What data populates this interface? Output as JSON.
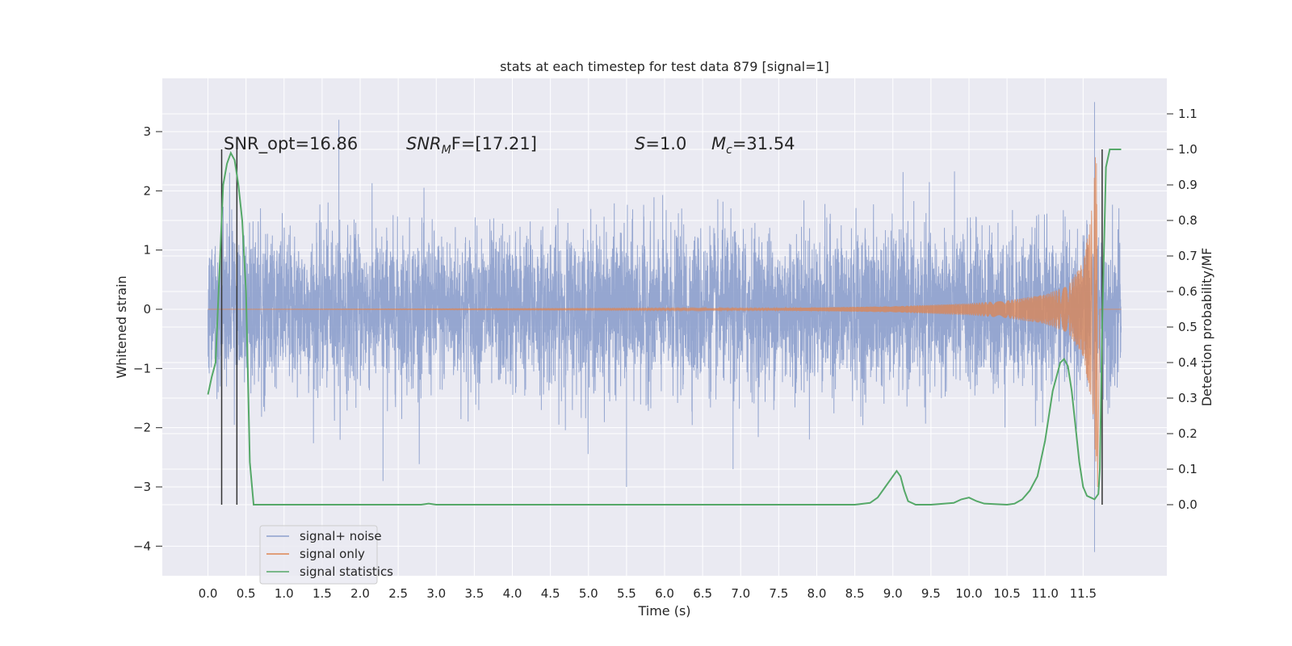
{
  "chart_data": {
    "type": "line",
    "title": "stats at each timestep for test data 879 [signal=1]",
    "xlabel": "Time (s)",
    "ylabel": "Whitened strain",
    "y2label": "Detection probability/MF",
    "xlim": [
      -0.6,
      12.6
    ],
    "ylim": [
      -4.5,
      3.9
    ],
    "y2lim": [
      -0.2,
      1.2
    ],
    "grid": true,
    "background": "#eaeaf2",
    "legend_position": "lower-left",
    "xticks": [
      "0.0",
      "0.5",
      "1.0",
      "1.5",
      "2.0",
      "2.5",
      "3.0",
      "3.5",
      "4.0",
      "4.5",
      "5.0",
      "5.5",
      "6.0",
      "6.5",
      "7.0",
      "7.5",
      "8.0",
      "8.5",
      "9.0",
      "9.5",
      "10.0",
      "10.5",
      "11.0",
      "11.5"
    ],
    "yticks": [
      "3",
      "2",
      "1",
      "0",
      "−1",
      "−2",
      "−3",
      "−4"
    ],
    "y2ticks": [
      "1.1",
      "1.0",
      "0.9",
      "0.8",
      "0.7",
      "0.6",
      "0.5",
      "0.4",
      "0.3",
      "0.2",
      "0.1",
      "0.0"
    ],
    "annotations": {
      "snr_opt": "SNR_opt=16.86",
      "snr_mf_sym": "SNR",
      "snr_mf_sub": "M",
      "snr_mf_rest": "F=[17.21]",
      "s_sym": "S",
      "s_rest": "=1.0",
      "mc_sym": "M",
      "mc_sub": "c",
      "mc_rest": "=31.54"
    },
    "vlines_x": [
      0.18,
      0.38,
      11.75
    ],
    "series": [
      {
        "name": "signal+ noise",
        "color": "#8c9fcc",
        "axis": "left",
        "description": "whitened strain noise, roughly Gaussian with std ~0.65 from t=0 to t=12",
        "time_range": [
          0.0,
          12.0
        ],
        "std": 0.65,
        "spikes": [
          [
            1.72,
            3.2
          ],
          [
            11.65,
            3.5
          ],
          [
            11.65,
            -4.1
          ],
          [
            5.5,
            -3.0
          ],
          [
            2.3,
            -2.9
          ],
          [
            6.9,
            -2.7
          ]
        ]
      },
      {
        "name": "signal only",
        "color": "#dd8452",
        "axis": "left",
        "description": "chirp waveform growing in amplitude toward merger near t=11.68",
        "envelope_points": [
          [
            0.0,
            0.0
          ],
          [
            7.5,
            0.02
          ],
          [
            9.0,
            0.05
          ],
          [
            10.0,
            0.1
          ],
          [
            10.5,
            0.15
          ],
          [
            11.0,
            0.25
          ],
          [
            11.3,
            0.4
          ],
          [
            11.5,
            0.8
          ],
          [
            11.6,
            1.5
          ],
          [
            11.68,
            2.9
          ]
        ]
      },
      {
        "name": "signal statistics",
        "color": "#55a868",
        "axis": "right",
        "x": [
          0.0,
          0.05,
          0.1,
          0.15,
          0.2,
          0.25,
          0.3,
          0.35,
          0.4,
          0.45,
          0.5,
          0.55,
          0.6,
          0.65,
          1.0,
          2.0,
          2.8,
          2.9,
          3.0,
          4.0,
          5.0,
          6.0,
          7.0,
          8.0,
          8.5,
          8.7,
          8.8,
          8.9,
          9.0,
          9.05,
          9.1,
          9.15,
          9.2,
          9.3,
          9.5,
          9.8,
          9.9,
          10.0,
          10.1,
          10.2,
          10.5,
          10.6,
          10.7,
          10.8,
          10.9,
          11.0,
          11.1,
          11.2,
          11.25,
          11.3,
          11.35,
          11.4,
          11.45,
          11.5,
          11.55,
          11.6,
          11.65,
          11.7,
          11.72,
          11.75,
          11.8,
          11.85,
          11.9,
          12.0
        ],
        "y": [
          0.31,
          0.36,
          0.4,
          0.65,
          0.9,
          0.96,
          0.99,
          0.97,
          0.9,
          0.8,
          0.6,
          0.12,
          0.0,
          0.0,
          0.0,
          0.0,
          0.0,
          0.003,
          0.0,
          0.0,
          0.0,
          0.0,
          0.0,
          0.0,
          0.0,
          0.005,
          0.02,
          0.05,
          0.08,
          0.095,
          0.08,
          0.04,
          0.01,
          0.0,
          0.0,
          0.005,
          0.015,
          0.02,
          0.01,
          0.003,
          0.0,
          0.003,
          0.015,
          0.04,
          0.08,
          0.18,
          0.32,
          0.4,
          0.41,
          0.39,
          0.32,
          0.22,
          0.12,
          0.05,
          0.025,
          0.02,
          0.015,
          0.03,
          0.1,
          0.5,
          0.95,
          1.0,
          1.0,
          1.0
        ]
      }
    ]
  }
}
